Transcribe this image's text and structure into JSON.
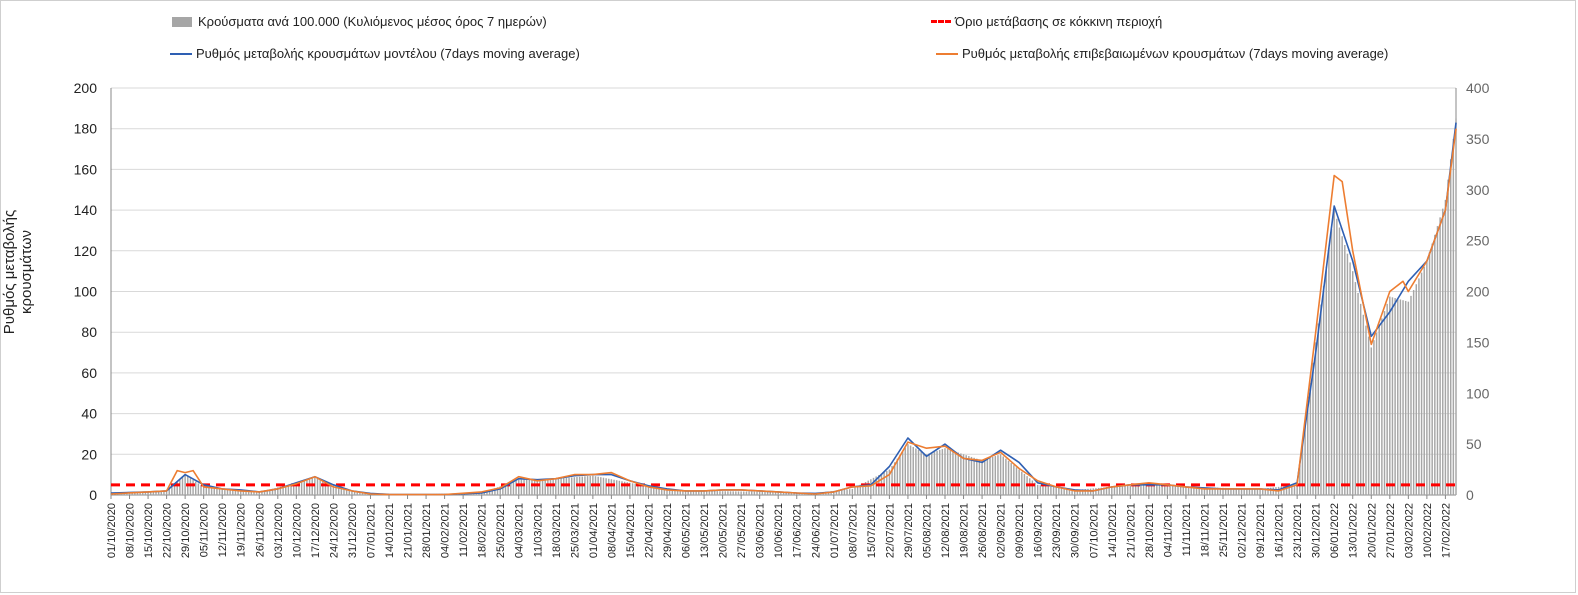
{
  "legend": {
    "bars": "Κρούσματα ανά 100.000 (Κυλιόμενος μέσος όρος 7 ημερών)",
    "threshold": "Όριο μετάβασης σε κόκκινη περιοχή",
    "model": "Ρυθμός μεταβολής κρουσμάτων μοντέλου (7days moving average)",
    "confirmed": "Ρυθμός μεταβολής επιβεβαιωμένων κρουσμάτων (7days moving average)"
  },
  "colors": {
    "bars": "#a6a6a6",
    "model": "#2e5fb3",
    "confirmed": "#ed7d31",
    "threshold": "#ff0000",
    "grid": "#d9d9d9"
  },
  "chart_data": {
    "type": "bar+line",
    "ylabel": "Ρυθμός μεταβολής κρουσμάτων",
    "y_left": {
      "range": [
        0,
        200
      ],
      "ticks": [
        0,
        20,
        40,
        60,
        80,
        100,
        120,
        140,
        160,
        180,
        200
      ]
    },
    "y_right": {
      "range": [
        0,
        400
      ],
      "ticks": [
        0,
        50,
        100,
        150,
        200,
        250,
        300,
        350,
        400
      ]
    },
    "x_start": "2020-10-01",
    "x_end": "2022-02-21",
    "x_tick_labels": [
      "01/10/2020",
      "08/10/2020",
      "15/10/2020",
      "22/10/2020",
      "29/10/2020",
      "05/11/2020",
      "12/11/2020",
      "19/11/2020",
      "26/11/2020",
      "03/12/2020",
      "10/12/2020",
      "17/12/2020",
      "24/12/2020",
      "31/12/2020",
      "07/01/2021",
      "14/01/2021",
      "21/01/2021",
      "28/01/2021",
      "04/02/2021",
      "11/02/2021",
      "18/02/2021",
      "25/02/2021",
      "04/03/2021",
      "11/03/2021",
      "18/03/2021",
      "25/03/2021",
      "01/04/2021",
      "08/04/2021",
      "15/04/2021",
      "22/04/2021",
      "29/04/2021",
      "06/05/2021",
      "13/05/2021",
      "20/05/2021",
      "27/05/2021",
      "03/06/2021",
      "10/06/2021",
      "17/06/2021",
      "24/06/2021",
      "01/07/2021",
      "08/07/2021",
      "15/07/2021",
      "22/07/2021",
      "29/07/2021",
      "05/08/2021",
      "12/08/2021",
      "19/08/2021",
      "26/08/2021",
      "02/09/2021",
      "09/09/2021",
      "16/09/2021",
      "23/09/2021",
      "30/09/2021",
      "07/10/2021",
      "14/10/2021",
      "21/10/2021",
      "28/10/2021",
      "04/11/2021",
      "11/11/2021",
      "18/11/2021",
      "25/11/2021",
      "02/12/2021",
      "09/12/2021",
      "16/12/2021",
      "23/12/2021",
      "30/12/2021",
      "06/01/2022",
      "13/01/2022",
      "20/01/2022",
      "27/01/2022",
      "03/02/2022",
      "10/02/2022",
      "17/02/2022"
    ],
    "threshold": 5,
    "series": [
      {
        "name": "Ρυθμός μεταβολής κρουσμάτων μοντέλου (7days moving average)",
        "axis": "left",
        "points": [
          [
            "2020-10-01",
            1
          ],
          [
            "2020-10-15",
            1.5
          ],
          [
            "2020-10-22",
            2
          ],
          [
            "2020-10-29",
            10
          ],
          [
            "2020-11-05",
            5
          ],
          [
            "2020-11-12",
            3
          ],
          [
            "2020-11-19",
            2.5
          ],
          [
            "2020-11-26",
            1.5
          ],
          [
            "2020-12-03",
            3
          ],
          [
            "2020-12-10",
            6
          ],
          [
            "2020-12-17",
            9
          ],
          [
            "2020-12-24",
            5
          ],
          [
            "2020-12-31",
            2
          ],
          [
            "2021-01-07",
            0.8
          ],
          [
            "2021-01-14",
            0.3
          ],
          [
            "2021-02-04",
            0.2
          ],
          [
            "2021-02-18",
            1
          ],
          [
            "2021-02-25",
            3
          ],
          [
            "2021-03-04",
            8
          ],
          [
            "2021-03-11",
            7.5
          ],
          [
            "2021-03-18",
            8
          ],
          [
            "2021-03-25",
            9.5
          ],
          [
            "2021-04-01",
            10
          ],
          [
            "2021-04-08",
            10
          ],
          [
            "2021-04-15",
            7
          ],
          [
            "2021-04-22",
            4.5
          ],
          [
            "2021-04-29",
            3
          ],
          [
            "2021-05-06",
            2
          ],
          [
            "2021-05-13",
            2
          ],
          [
            "2021-05-20",
            2.5
          ],
          [
            "2021-05-27",
            2.5
          ],
          [
            "2021-06-03",
            2
          ],
          [
            "2021-06-10",
            1.5
          ],
          [
            "2021-06-17",
            1
          ],
          [
            "2021-06-24",
            0.8
          ],
          [
            "2021-07-01",
            1.5
          ],
          [
            "2021-07-08",
            4
          ],
          [
            "2021-07-15",
            5
          ],
          [
            "2021-07-22",
            14
          ],
          [
            "2021-07-29",
            28
          ],
          [
            "2021-08-05",
            19
          ],
          [
            "2021-08-12",
            25
          ],
          [
            "2021-08-19",
            18
          ],
          [
            "2021-08-26",
            16
          ],
          [
            "2021-09-02",
            22
          ],
          [
            "2021-09-09",
            16
          ],
          [
            "2021-09-16",
            6
          ],
          [
            "2021-09-23",
            4
          ],
          [
            "2021-09-30",
            2.5
          ],
          [
            "2021-10-07",
            2
          ],
          [
            "2021-10-14",
            4
          ],
          [
            "2021-10-21",
            5
          ],
          [
            "2021-10-28",
            5
          ],
          [
            "2021-11-04",
            5
          ],
          [
            "2021-11-11",
            4
          ],
          [
            "2021-11-18",
            3.5
          ],
          [
            "2021-11-25",
            3
          ],
          [
            "2021-12-02",
            3
          ],
          [
            "2021-12-09",
            3
          ],
          [
            "2021-12-16",
            2.5
          ],
          [
            "2021-12-23",
            6
          ],
          [
            "2021-12-30",
            70
          ],
          [
            "2022-01-06",
            142
          ],
          [
            "2022-01-13",
            115
          ],
          [
            "2022-01-20",
            78
          ],
          [
            "2022-01-27",
            90
          ],
          [
            "2022-02-03",
            105
          ],
          [
            "2022-02-10",
            115
          ],
          [
            "2022-02-17",
            140
          ],
          [
            "2022-02-21",
            183
          ]
        ]
      },
      {
        "name": "Ρυθμός μεταβολής επιβεβαιωμένων κρουσμάτων (7days moving average)",
        "axis": "left",
        "points": [
          [
            "2020-10-01",
            0.5
          ],
          [
            "2020-10-15",
            1.5
          ],
          [
            "2020-10-22",
            2
          ],
          [
            "2020-10-26",
            12
          ],
          [
            "2020-10-29",
            11
          ],
          [
            "2020-11-01",
            12
          ],
          [
            "2020-11-05",
            4
          ],
          [
            "2020-11-12",
            3
          ],
          [
            "2020-11-19",
            2
          ],
          [
            "2020-11-26",
            1.5
          ],
          [
            "2020-12-03",
            3
          ],
          [
            "2020-12-10",
            5.5
          ],
          [
            "2020-12-17",
            9
          ],
          [
            "2020-12-24",
            4
          ],
          [
            "2020-12-31",
            2
          ],
          [
            "2021-01-07",
            0.5
          ],
          [
            "2021-01-14",
            0.2
          ],
          [
            "2021-02-04",
            0.2
          ],
          [
            "2021-02-18",
            1.5
          ],
          [
            "2021-02-25",
            3.5
          ],
          [
            "2021-03-04",
            9
          ],
          [
            "2021-03-11",
            7
          ],
          [
            "2021-03-18",
            8
          ],
          [
            "2021-03-25",
            10
          ],
          [
            "2021-04-01",
            10
          ],
          [
            "2021-04-08",
            11
          ],
          [
            "2021-04-15",
            7
          ],
          [
            "2021-04-22",
            4
          ],
          [
            "2021-04-29",
            2.5
          ],
          [
            "2021-05-06",
            2
          ],
          [
            "2021-05-13",
            2
          ],
          [
            "2021-05-20",
            2.5
          ],
          [
            "2021-05-27",
            2.5
          ],
          [
            "2021-06-03",
            2
          ],
          [
            "2021-06-10",
            1.5
          ],
          [
            "2021-06-17",
            1
          ],
          [
            "2021-06-24",
            0.5
          ],
          [
            "2021-07-01",
            1.5
          ],
          [
            "2021-07-08",
            4
          ],
          [
            "2021-07-15",
            4.5
          ],
          [
            "2021-07-22",
            10
          ],
          [
            "2021-07-29",
            26
          ],
          [
            "2021-08-05",
            23
          ],
          [
            "2021-08-12",
            24
          ],
          [
            "2021-08-19",
            18
          ],
          [
            "2021-08-26",
            17
          ],
          [
            "2021-09-02",
            21
          ],
          [
            "2021-09-09",
            13
          ],
          [
            "2021-09-16",
            7
          ],
          [
            "2021-09-23",
            4
          ],
          [
            "2021-09-30",
            2
          ],
          [
            "2021-10-07",
            2
          ],
          [
            "2021-10-14",
            4
          ],
          [
            "2021-10-21",
            5
          ],
          [
            "2021-10-28",
            6
          ],
          [
            "2021-11-04",
            5
          ],
          [
            "2021-11-11",
            4
          ],
          [
            "2021-11-18",
            3
          ],
          [
            "2021-11-25",
            3
          ],
          [
            "2021-12-02",
            3
          ],
          [
            "2021-12-09",
            3
          ],
          [
            "2021-12-16",
            2
          ],
          [
            "2021-12-23",
            5
          ],
          [
            "2021-12-30",
            80
          ],
          [
            "2022-01-06",
            157
          ],
          [
            "2022-01-09",
            154
          ],
          [
            "2022-01-13",
            120
          ],
          [
            "2022-01-20",
            74
          ],
          [
            "2022-01-27",
            100
          ],
          [
            "2022-02-01",
            105
          ],
          [
            "2022-02-03",
            100
          ],
          [
            "2022-02-10",
            115
          ],
          [
            "2022-02-17",
            140
          ],
          [
            "2022-02-21",
            180
          ]
        ]
      },
      {
        "name": "Κρούσματα ανά 100.000 (Κυλιόμενος μέσος όρος 7 ημερών)",
        "axis": "right",
        "type": "bar",
        "points": [
          [
            "2020-10-01",
            2
          ],
          [
            "2020-10-22",
            4
          ],
          [
            "2020-10-29",
            20
          ],
          [
            "2020-11-05",
            8
          ],
          [
            "2020-11-19",
            5
          ],
          [
            "2020-11-26",
            3
          ],
          [
            "2020-12-10",
            12
          ],
          [
            "2020-12-17",
            17
          ],
          [
            "2020-12-31",
            4
          ],
          [
            "2021-01-07",
            1
          ],
          [
            "2021-01-21",
            0.5
          ],
          [
            "2021-02-18",
            2
          ],
          [
            "2021-03-04",
            15
          ],
          [
            "2021-03-18",
            16
          ],
          [
            "2021-04-01",
            19
          ],
          [
            "2021-04-15",
            12
          ],
          [
            "2021-04-29",
            5
          ],
          [
            "2021-05-13",
            4
          ],
          [
            "2021-06-10",
            3
          ],
          [
            "2021-06-24",
            2
          ],
          [
            "2021-07-08",
            6
          ],
          [
            "2021-07-22",
            25
          ],
          [
            "2021-07-29",
            50
          ],
          [
            "2021-08-05",
            40
          ],
          [
            "2021-08-12",
            46
          ],
          [
            "2021-08-26",
            34
          ],
          [
            "2021-09-02",
            40
          ],
          [
            "2021-09-16",
            10
          ],
          [
            "2021-09-30",
            5
          ],
          [
            "2021-10-14",
            8
          ],
          [
            "2021-10-28",
            10
          ],
          [
            "2021-11-11",
            8
          ],
          [
            "2021-12-09",
            6
          ],
          [
            "2021-12-23",
            10
          ],
          [
            "2021-12-30",
            150
          ],
          [
            "2022-01-06",
            280
          ],
          [
            "2022-01-13",
            220
          ],
          [
            "2022-01-20",
            145
          ],
          [
            "2022-01-27",
            195
          ],
          [
            "2022-02-03",
            190
          ],
          [
            "2022-02-10",
            230
          ],
          [
            "2022-02-17",
            290
          ],
          [
            "2022-02-21",
            370
          ]
        ]
      }
    ]
  }
}
